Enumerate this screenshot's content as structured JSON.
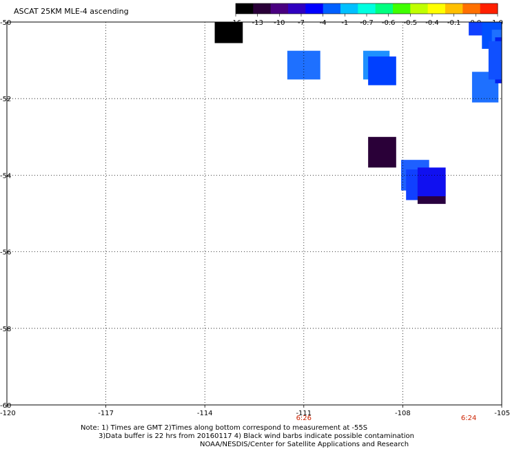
{
  "title": "ASCAT 25KM MLE-4 ascending",
  "colorbar": {
    "colors": [
      "#000000",
      "#2a0038",
      "#4a0080",
      "#3000c0",
      "#0000ff",
      "#0060ff",
      "#00c0ff",
      "#00ffe0",
      "#00ff80",
      "#40ff00",
      "#c0ff00",
      "#ffff00",
      "#ffc000",
      "#ff7000",
      "#ff2000"
    ],
    "tick_labels": [
      "-16",
      "-13",
      "-10",
      "-7",
      "-4",
      "-1",
      "-0.7",
      "-0.6",
      "-0.5",
      "-0.4",
      "-0.1",
      "0.0",
      "1.0"
    ]
  },
  "axes": {
    "x_ticks": [
      "-120",
      "-117",
      "-114",
      "-111",
      "-108",
      "-105"
    ],
    "x_tick_values": [
      -120,
      -117,
      -114,
      -111,
      -108,
      -105
    ],
    "y_ticks": [
      "-50",
      "-52",
      "-54",
      "-56",
      "-58",
      "-60"
    ],
    "y_tick_values": [
      -50,
      -52,
      -54,
      -56,
      -58,
      -60
    ],
    "x_range": [
      -120,
      -105
    ],
    "y_range": [
      -50,
      -60
    ]
  },
  "times": [
    {
      "label": "6:26",
      "lon": -111
    },
    {
      "label": "6:24",
      "lon": -106
    }
  ],
  "cells": [
    {
      "lon0": -113.7,
      "lon1": -112.85,
      "lat0": -50.0,
      "lat1": -50.55,
      "color": "#000000"
    },
    {
      "lon0": -111.5,
      "lon1": -110.5,
      "lat0": -50.75,
      "lat1": -51.5,
      "color": "#1e70ff"
    },
    {
      "lon0": -109.2,
      "lon1": -108.4,
      "lat0": -50.75,
      "lat1": -51.5,
      "color": "#1e90ff"
    },
    {
      "lon0": -109.05,
      "lon1": -108.2,
      "lat0": -50.9,
      "lat1": -51.65,
      "color": "#0040ff"
    },
    {
      "lon0": -109.05,
      "lon1": -108.2,
      "lat0": -53.0,
      "lat1": -53.8,
      "color": "#2a0038"
    },
    {
      "lon0": -108.05,
      "lon1": -107.2,
      "lat0": -53.6,
      "lat1": -54.4,
      "color": "#1e60ff"
    },
    {
      "lon0": -107.9,
      "lon1": -107.0,
      "lat0": -53.85,
      "lat1": -54.65,
      "color": "#1040ff"
    },
    {
      "lon0": -107.55,
      "lon1": -106.7,
      "lat0": -54.0,
      "lat1": -54.75,
      "color": "#2a0040"
    },
    {
      "lon0": -107.55,
      "lon1": -106.7,
      "lat0": -53.8,
      "lat1": -54.55,
      "color": "#1010f0"
    },
    {
      "lon0": -105.9,
      "lon1": -105.1,
      "lat0": -51.3,
      "lat1": -52.1,
      "color": "#1e70ff"
    },
    {
      "lon0": -106.0,
      "lon1": -105.2,
      "lat0": -50.0,
      "lat1": -50.35,
      "color": "#1040ff"
    },
    {
      "lon0": -105.2,
      "lon1": -105.0,
      "lat0": -50.0,
      "lat1": -50.35,
      "color": "#0000e0"
    },
    {
      "lon0": -105.6,
      "lon1": -105.0,
      "lat0": -50.0,
      "lat1": -50.7,
      "color": "#0050ff"
    },
    {
      "lon0": -105.3,
      "lon1": -105.0,
      "lat0": -50.2,
      "lat1": -51.5,
      "color": "#1e70ff"
    },
    {
      "lon0": -105.2,
      "lon1": -105.0,
      "lat0": -50.4,
      "lat1": -51.6,
      "color": "#0020f0"
    },
    {
      "lon0": -105.4,
      "lon1": -105.0,
      "lat0": -50.5,
      "lat1": -51.5,
      "color": "#1050ff"
    }
  ],
  "notes": {
    "line1": "Note: 1) Times are GMT 2)Times along bottom correspond to measurement at -55S",
    "line2": "3)Data buffer is 22 hrs from 20160117 4) Black wind barbs indicate possible contamination",
    "line3": "NOAA/NESDIS/Center for Satellite Applications and Research"
  }
}
